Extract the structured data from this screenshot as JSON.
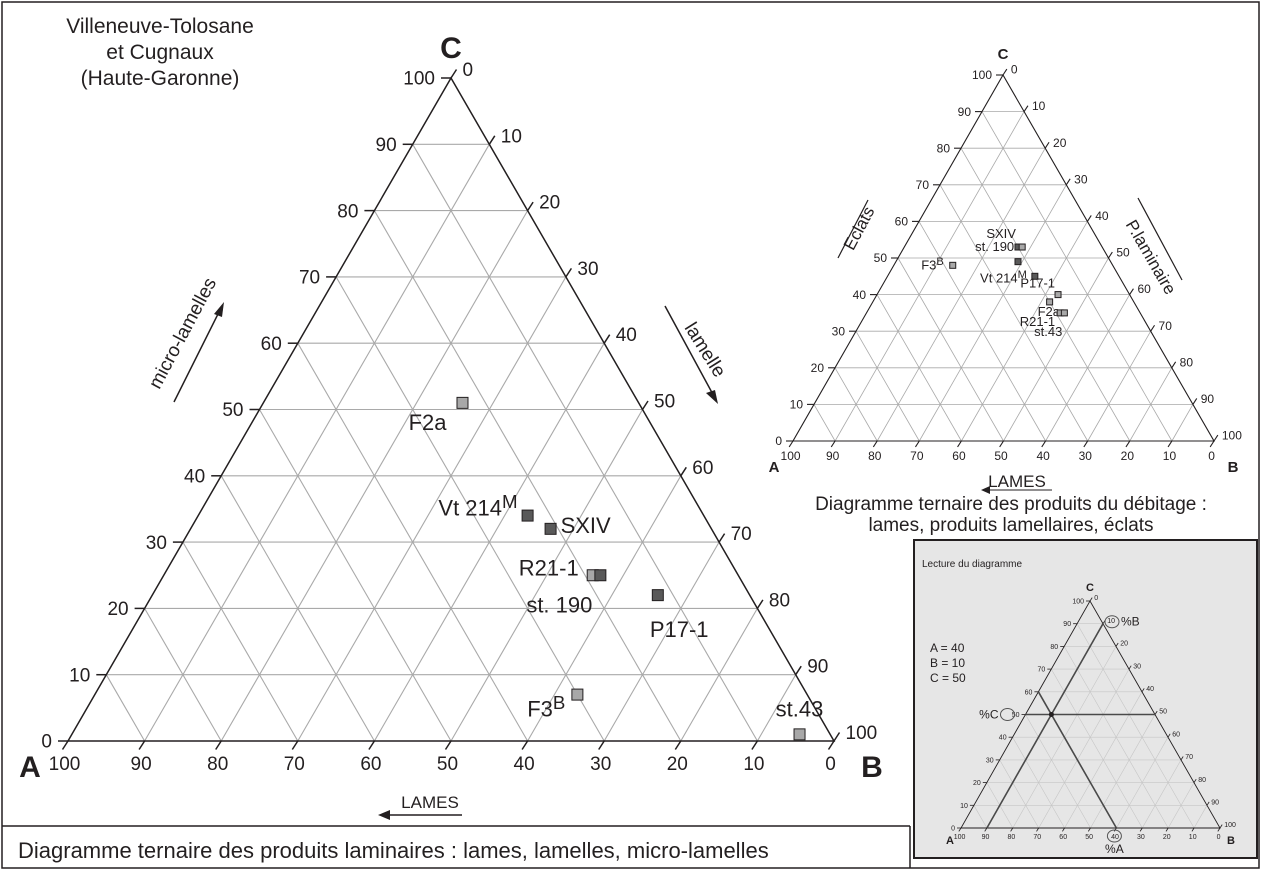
{
  "chart_data": [
    {
      "id": "main",
      "type": "ternary",
      "title": "Diagramme ternaire des produits laminaires : lames, lamelles, micro-lamelles",
      "place": "Villeneuve-Tolosane\net Cugnaux\n(Haute-Garonne)",
      "vertices": {
        "A": "A",
        "B": "B",
        "C": "C"
      },
      "axis_labels": {
        "left": "micro-lamelles",
        "right": "lamelle",
        "bottom": "LAMES"
      },
      "ticks": [
        0,
        10,
        20,
        30,
        40,
        50,
        60,
        70,
        80,
        90,
        100
      ],
      "grid": true,
      "colors": {
        "dark_marker": "#595959",
        "light_marker": "#a8a8a8",
        "grid": "#a9a9a9",
        "frame": "#231f20"
      },
      "points": [
        {
          "label": "F2a",
          "sup": "",
          "a": 23,
          "b": 26,
          "c": 51,
          "shade": "light"
        },
        {
          "label": "Vt 214",
          "sup": "M",
          "a": 23,
          "b": 43,
          "c": 34,
          "shade": "dark"
        },
        {
          "label": "SXIV",
          "sup": "",
          "a": 21,
          "b": 47,
          "c": 32,
          "shade": "dark"
        },
        {
          "label": "R21-1",
          "sup": "",
          "a": 19,
          "b": 56,
          "c": 25,
          "shade": "light"
        },
        {
          "label": "st. 190",
          "sup": "",
          "a": 18,
          "b": 57,
          "c": 25,
          "shade": "dark"
        },
        {
          "label": "P17-1",
          "sup": "",
          "a": 12,
          "b": 66,
          "c": 22,
          "shade": "dark"
        },
        {
          "label": "F3",
          "sup": "B",
          "a": 30,
          "b": 63,
          "c": 7,
          "shade": "light"
        },
        {
          "label": "st.43",
          "sup": "",
          "a": 4,
          "b": 95,
          "c": 1,
          "shade": "light"
        }
      ]
    },
    {
      "id": "debitage",
      "type": "ternary",
      "title": "Diagramme ternaire des produits du débitage :\nlames, produits lamellaires, éclats",
      "vertices": {
        "A": "A",
        "B": "B",
        "C": "C"
      },
      "axis_labels": {
        "left": "Eclats",
        "right": "P.laminaire",
        "bottom": "LAMES"
      },
      "ticks": [
        0,
        10,
        20,
        30,
        40,
        50,
        60,
        70,
        80,
        90,
        100
      ],
      "grid": true,
      "points": [
        {
          "label": "SXIV",
          "sup": "",
          "a": 20,
          "b": 27,
          "c": 53,
          "shade": "dark"
        },
        {
          "label": "st. 190",
          "sup": "",
          "a": 19,
          "b": 28,
          "c": 53,
          "shade": "light"
        },
        {
          "label": "F3",
          "sup": "B",
          "a": 38,
          "b": 14,
          "c": 48,
          "shade": "light"
        },
        {
          "label": "",
          "sup": "",
          "a": 22,
          "b": 29,
          "c": 49,
          "shade": "dark"
        },
        {
          "label": "Vt 214",
          "sup": "M",
          "a": 20,
          "b": 35,
          "c": 45,
          "shade": "dark"
        },
        {
          "label": "P17-1",
          "sup": "",
          "a": 17,
          "b": 43,
          "c": 40,
          "shade": "light"
        },
        {
          "label": "F2a",
          "sup": "",
          "a": 20,
          "b": 42,
          "c": 38,
          "shade": "light"
        },
        {
          "label": "R21-1",
          "sup": "",
          "a": 19,
          "b": 46,
          "c": 35,
          "shade": "light"
        },
        {
          "label": "st.43",
          "sup": "",
          "a": 18,
          "b": 47,
          "c": 35,
          "shade": "light"
        }
      ]
    },
    {
      "id": "lecture",
      "type": "ternary",
      "title": "Lecture du diagramme",
      "vertices": {
        "A": "A",
        "B": "B",
        "C": "C"
      },
      "ticks": [
        0,
        10,
        20,
        30,
        40,
        50,
        60,
        70,
        80,
        90,
        100
      ],
      "legend": [
        "A = 40",
        "B = 10",
        "C = 50"
      ],
      "example": {
        "a": 40,
        "b": 10,
        "c": 50
      },
      "markers": {
        "b": "%B",
        "c": "%C",
        "a": "%A"
      },
      "background": "#e6e6e6"
    }
  ]
}
